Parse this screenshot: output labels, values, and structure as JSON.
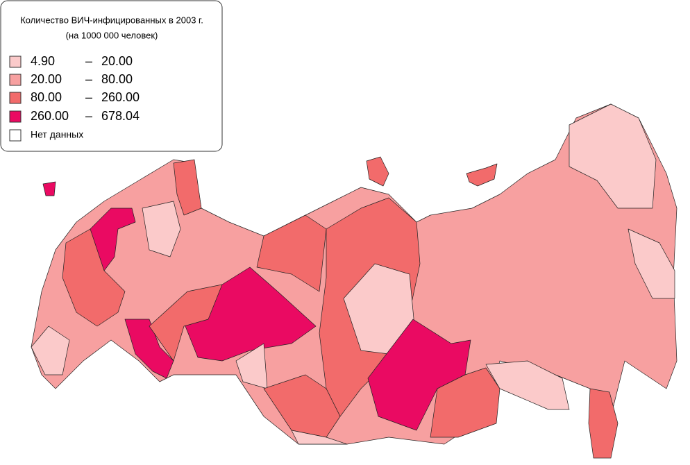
{
  "legend": {
    "title": [
      "Количество ВИЧ-инфицированных в 2003 г.",
      "(на 1000 000 человек)"
    ],
    "separator": "–",
    "items": [
      {
        "from": "4.90",
        "to": "20.00",
        "color": "#fbcaca"
      },
      {
        "from": "20.00",
        "to": "80.00",
        "color": "#f7a0a0"
      },
      {
        "from": "80.00",
        "to": "260.00",
        "color": "#f26b6b"
      },
      {
        "from": "260.00",
        "to": "678.04",
        "color": "#ea0a62"
      },
      {
        "label": "Нет данных",
        "color": "#ffffff"
      }
    ]
  }
}
